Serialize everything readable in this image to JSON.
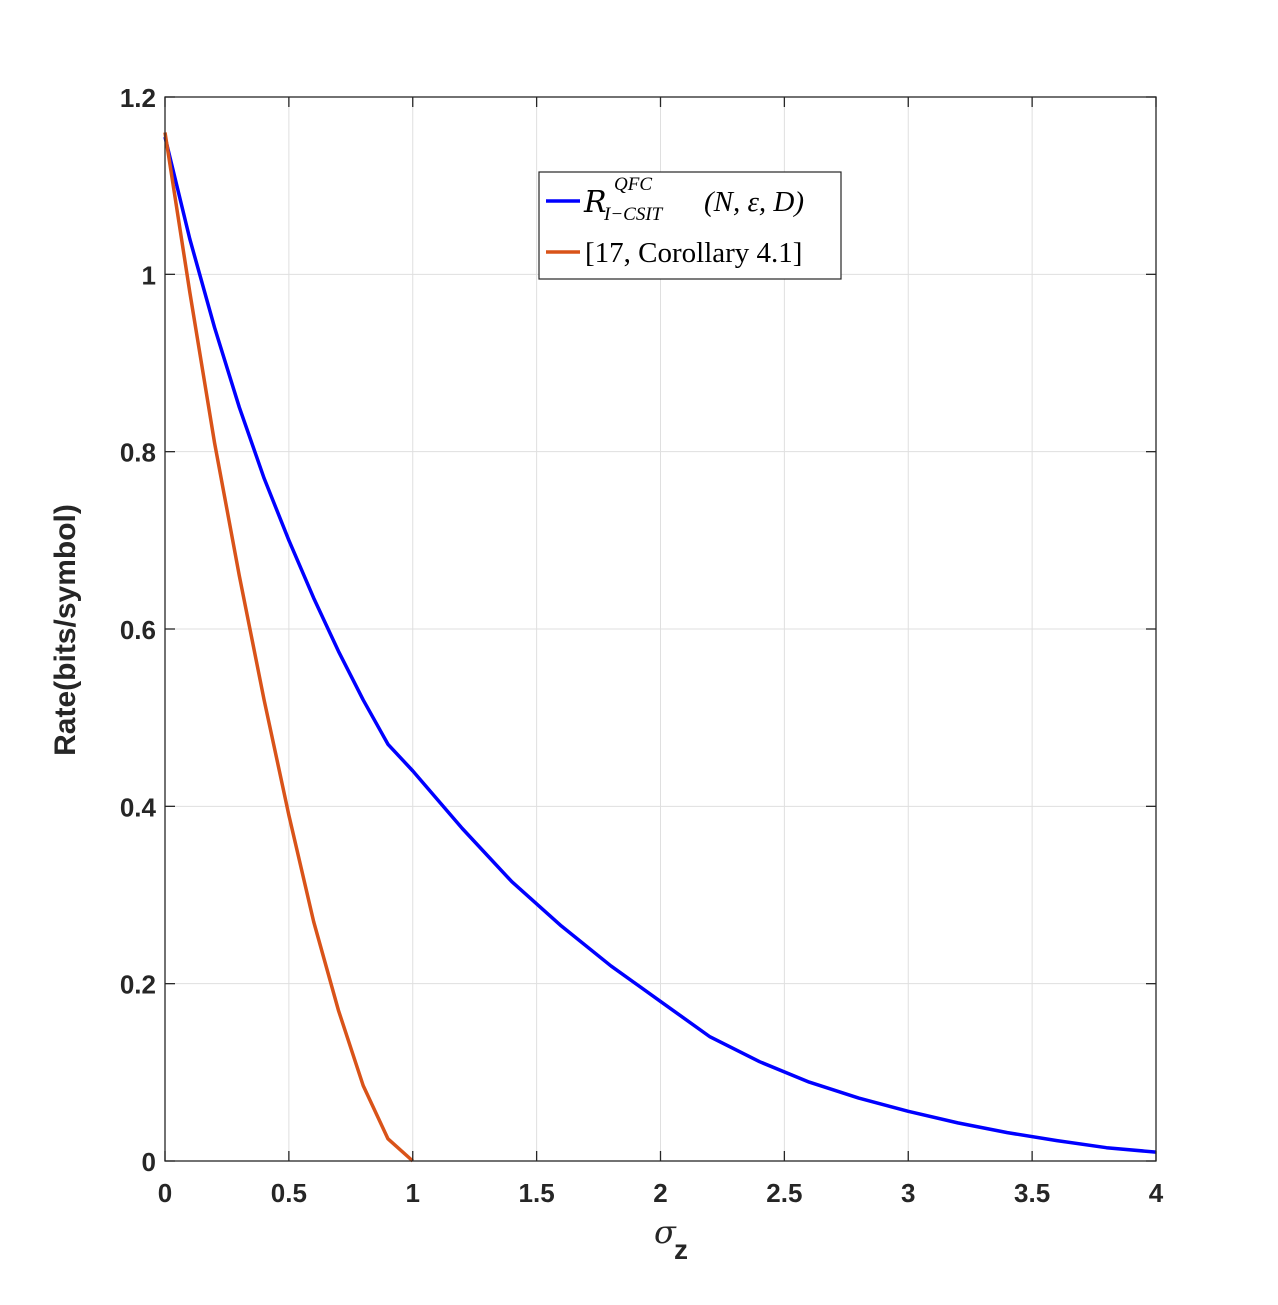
{
  "chart_data": {
    "type": "line",
    "title": "",
    "xlabel": {
      "symbol": "σ",
      "subscript": "z"
    },
    "ylabel": "Rate(bits/symbol)",
    "xlim": [
      0,
      4
    ],
    "ylim": [
      0,
      1.2
    ],
    "xticks": [
      0,
      0.5,
      1,
      1.5,
      2,
      2.5,
      3,
      3.5,
      4
    ],
    "xtick_labels": [
      "0",
      "0.5",
      "1",
      "1.5",
      "2",
      "2.5",
      "3",
      "3.5",
      "4"
    ],
    "yticks": [
      0,
      0.2,
      0.4,
      0.6,
      0.8,
      1,
      1.2
    ],
    "ytick_labels": [
      "0",
      "0.2",
      "0.4",
      "0.6",
      "0.8",
      "1",
      "1.2"
    ],
    "grid": true,
    "legend_position": "top-center",
    "series": [
      {
        "name": {
          "script": "R",
          "sup": "QFC",
          "sub": "I−CSIT",
          "args": "(N, ε, D)"
        },
        "color": "#0000ff",
        "x": [
          0,
          0.1,
          0.2,
          0.3,
          0.4,
          0.5,
          0.6,
          0.7,
          0.8,
          0.9,
          1.0,
          1.2,
          1.4,
          1.6,
          1.8,
          2.0,
          2.2,
          2.4,
          2.6,
          2.8,
          3.0,
          3.2,
          3.4,
          3.6,
          3.8,
          4.0
        ],
        "y": [
          1.155,
          1.04,
          0.94,
          0.85,
          0.77,
          0.7,
          0.635,
          0.575,
          0.52,
          0.47,
          0.44,
          0.375,
          0.315,
          0.265,
          0.22,
          0.18,
          0.14,
          0.112,
          0.089,
          0.071,
          0.056,
          0.043,
          0.032,
          0.023,
          0.015,
          0.01
        ]
      },
      {
        "name": {
          "text": "[17, Corollary 4.1]"
        },
        "color": "#d95319",
        "x": [
          0,
          0.1,
          0.2,
          0.3,
          0.4,
          0.5,
          0.6,
          0.7,
          0.8,
          0.9,
          1.0
        ],
        "y": [
          1.16,
          0.98,
          0.81,
          0.66,
          0.52,
          0.39,
          0.27,
          0.17,
          0.085,
          0.025,
          0
        ]
      }
    ]
  }
}
